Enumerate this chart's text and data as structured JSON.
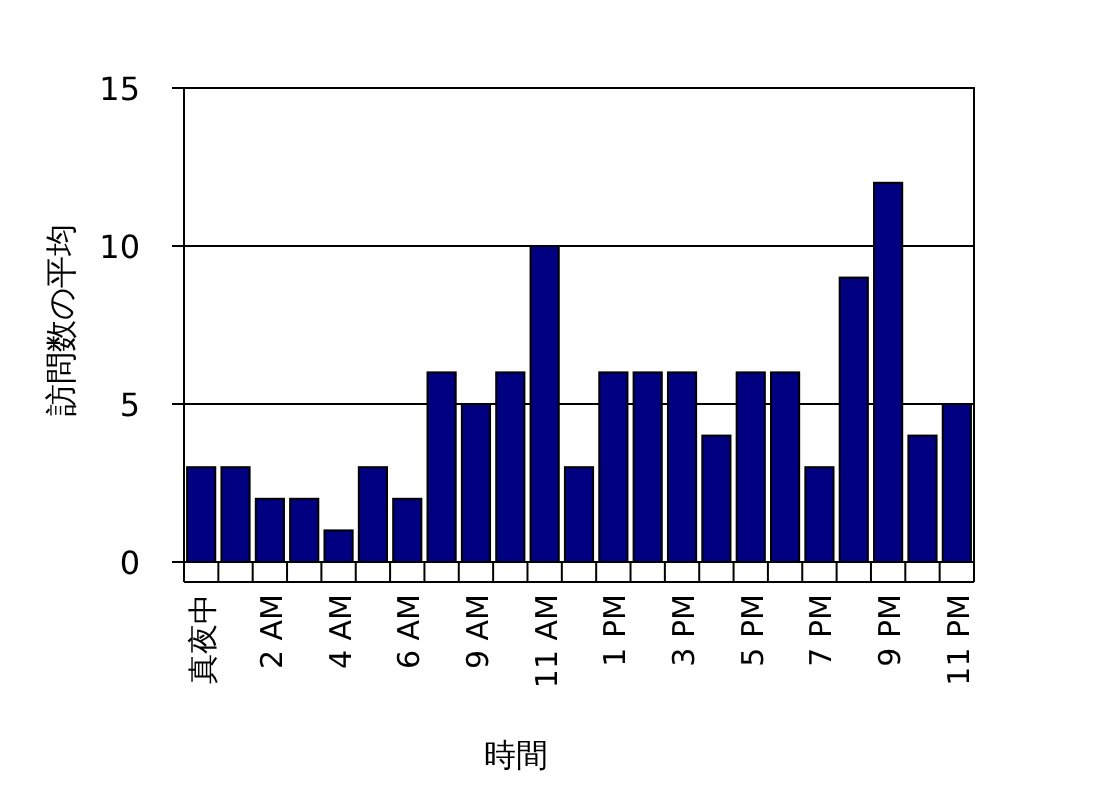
{
  "chart_data": {
    "type": "bar",
    "xlabel": "時間",
    "ylabel": "訪問数の平均",
    "categories": [
      "真夜中",
      null,
      "2 AM",
      null,
      "4 AM",
      null,
      "6 AM",
      null,
      "9 AM",
      null,
      "11 AM",
      null,
      "1 PM",
      null,
      "3 PM",
      null,
      "5 PM",
      null,
      "7 PM",
      null,
      "9 PM",
      null,
      "11 PM"
    ],
    "values": [
      3,
      3,
      2,
      2,
      1,
      3,
      2,
      6,
      5,
      6,
      10,
      3,
      6,
      6,
      6,
      4,
      6,
      6,
      3,
      9,
      12,
      4,
      5
    ],
    "color": "#000080",
    "ylim": [
      0,
      15
    ],
    "yticks": [
      0,
      5,
      10,
      15
    ],
    "grid": "y"
  }
}
